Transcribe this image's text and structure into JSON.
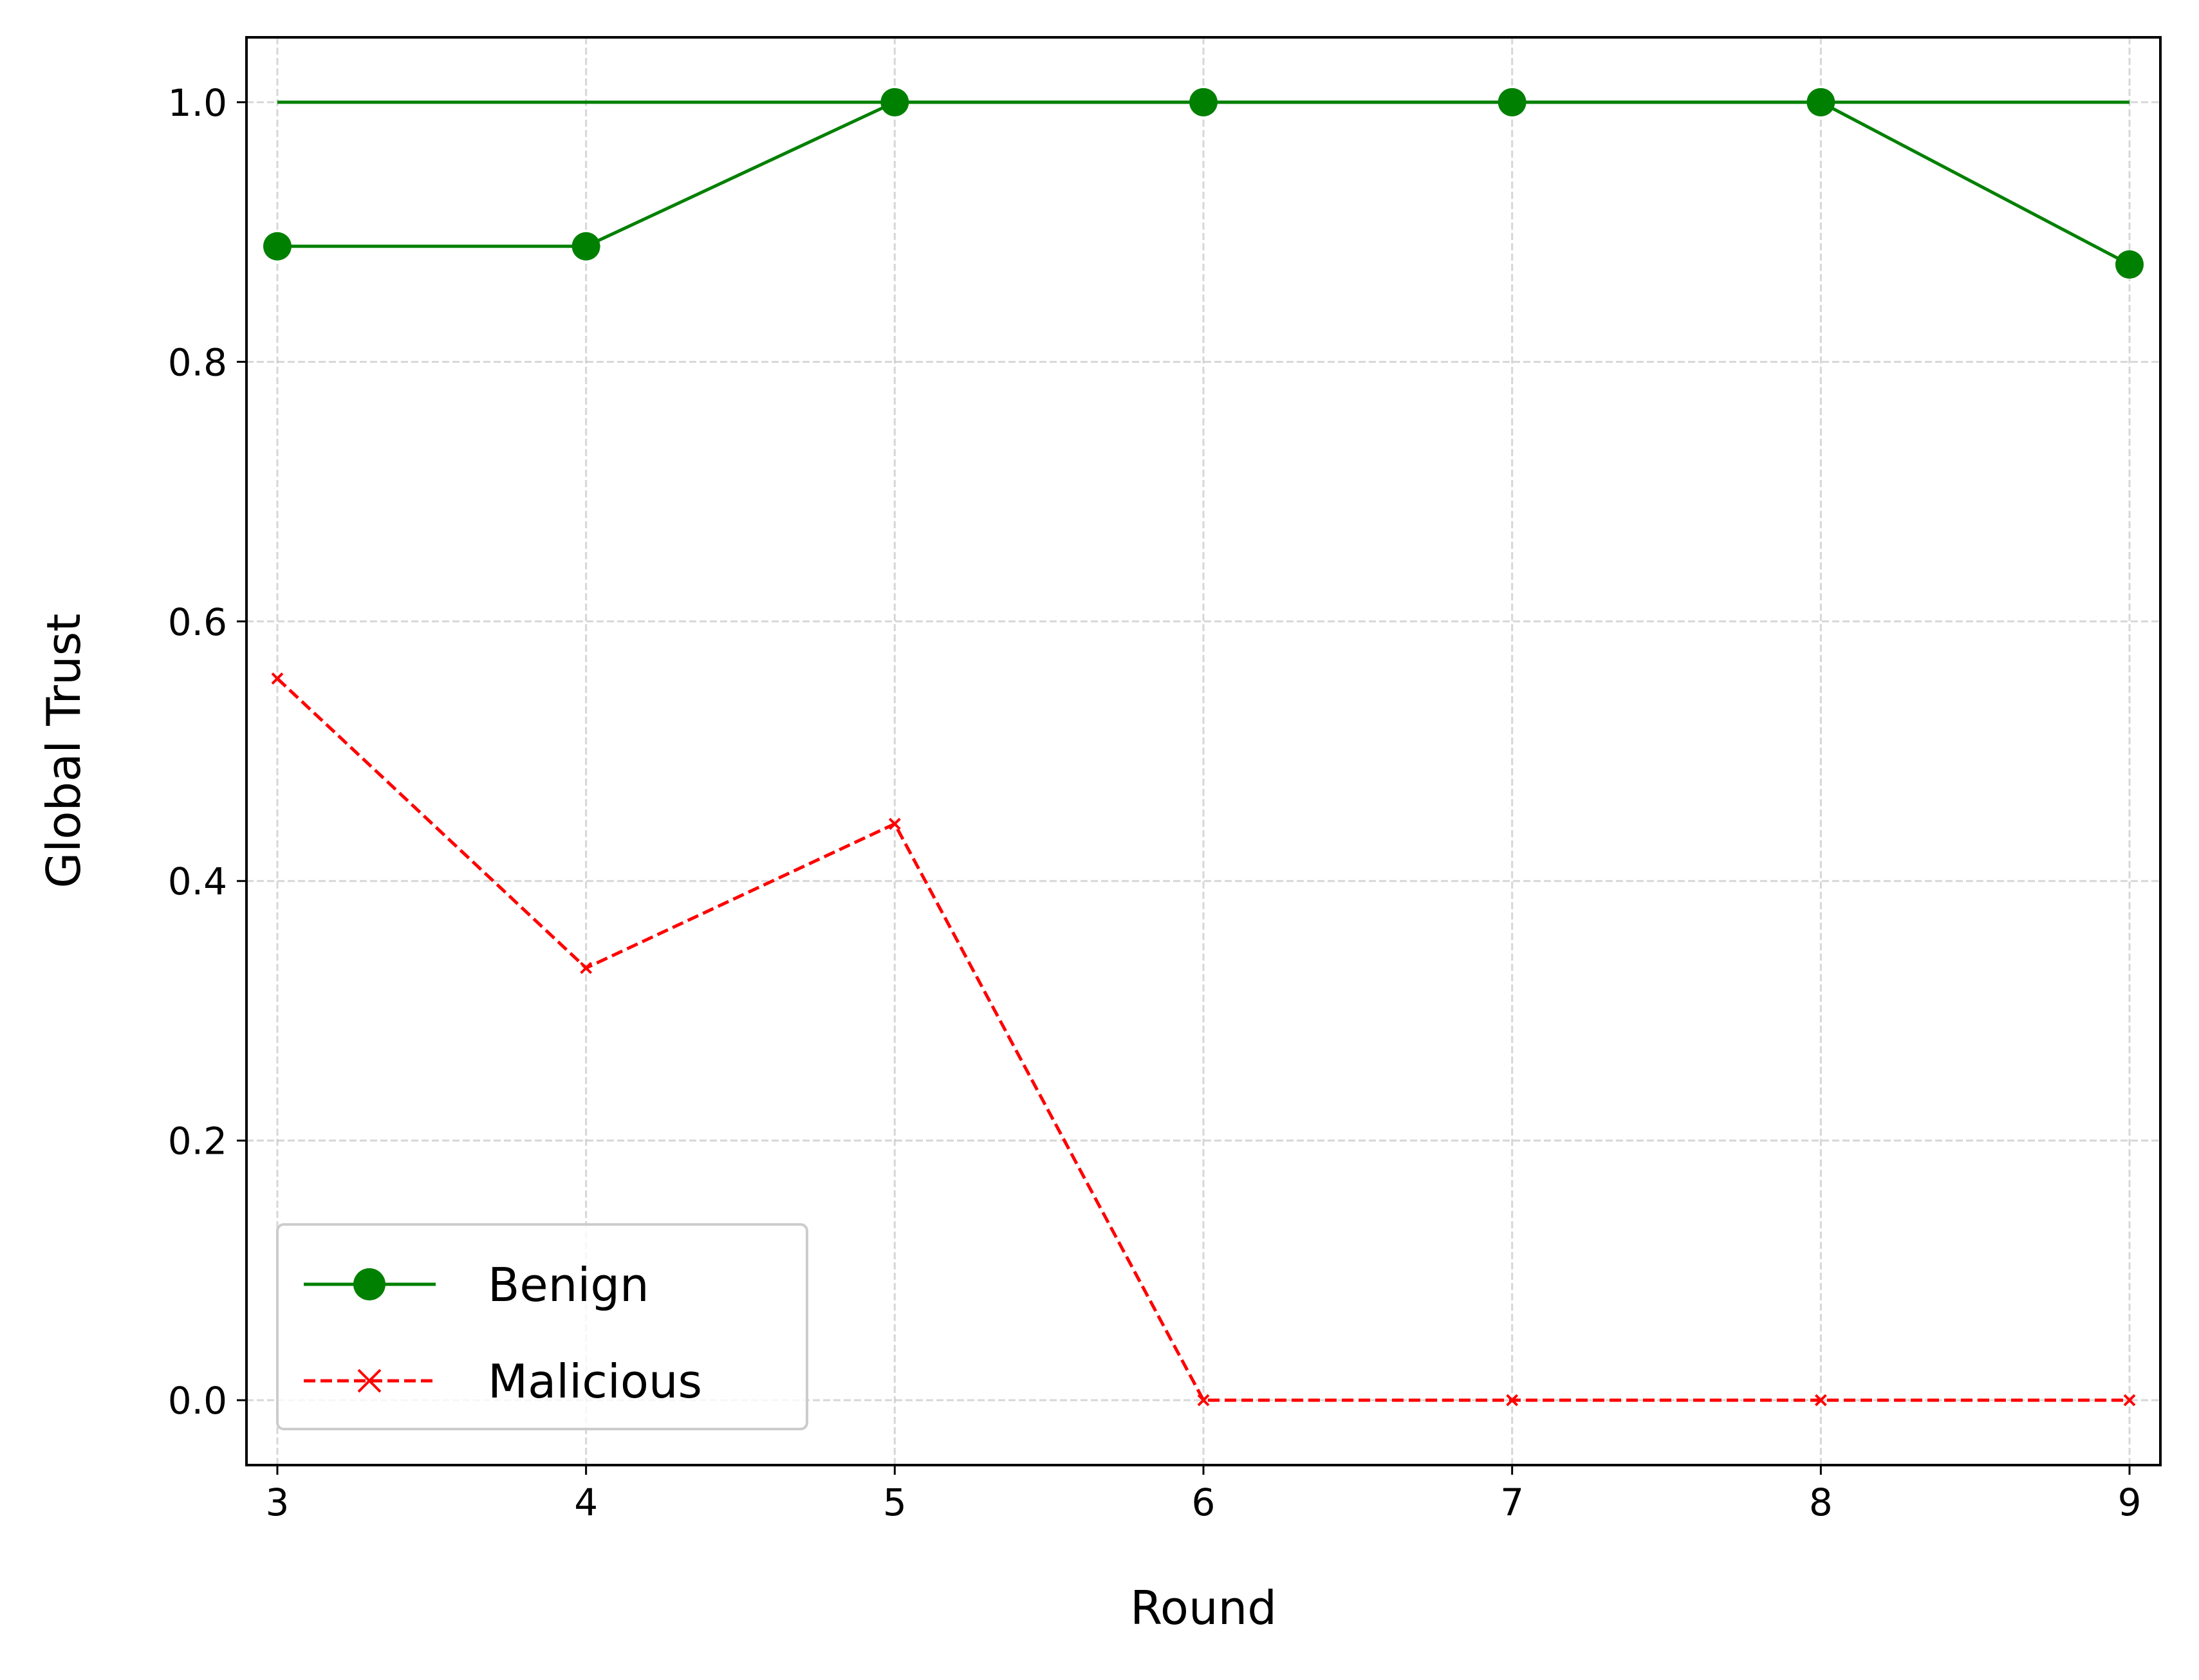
{
  "chart_data": {
    "type": "line",
    "title": "",
    "xlabel": "Round",
    "ylabel": "Global Trust",
    "x": [
      3,
      4,
      5,
      6,
      7,
      8,
      9
    ],
    "xlim": [
      2.9,
      9.1
    ],
    "ylim": [
      -0.05,
      1.05
    ],
    "xticks": [
      3,
      4,
      5,
      6,
      7,
      8,
      9
    ],
    "yticks": [
      0.0,
      0.2,
      0.4,
      0.6,
      0.8,
      1.0
    ],
    "xtick_labels": [
      "3",
      "4",
      "5",
      "6",
      "7",
      "8",
      "9"
    ],
    "ytick_labels": [
      "0.0",
      "0.2",
      "0.4",
      "0.6",
      "0.8",
      "1.0"
    ],
    "grid": true,
    "legend_position": "lower-left",
    "series": [
      {
        "name": "Benign",
        "color": "#008000",
        "line_style": "solid",
        "marker": "circle",
        "values": [
          0.889,
          0.889,
          1.0,
          1.0,
          1.0,
          1.0,
          0.875
        ],
        "extra_line": {
          "x": [
            3,
            9
          ],
          "y": [
            1.0,
            1.0
          ]
        }
      },
      {
        "name": "Malicious",
        "color": "#ff0000",
        "line_style": "dashed",
        "marker": "x",
        "values": [
          0.556,
          0.333,
          0.444,
          0.0,
          0.0,
          0.0,
          0.0
        ]
      }
    ]
  }
}
